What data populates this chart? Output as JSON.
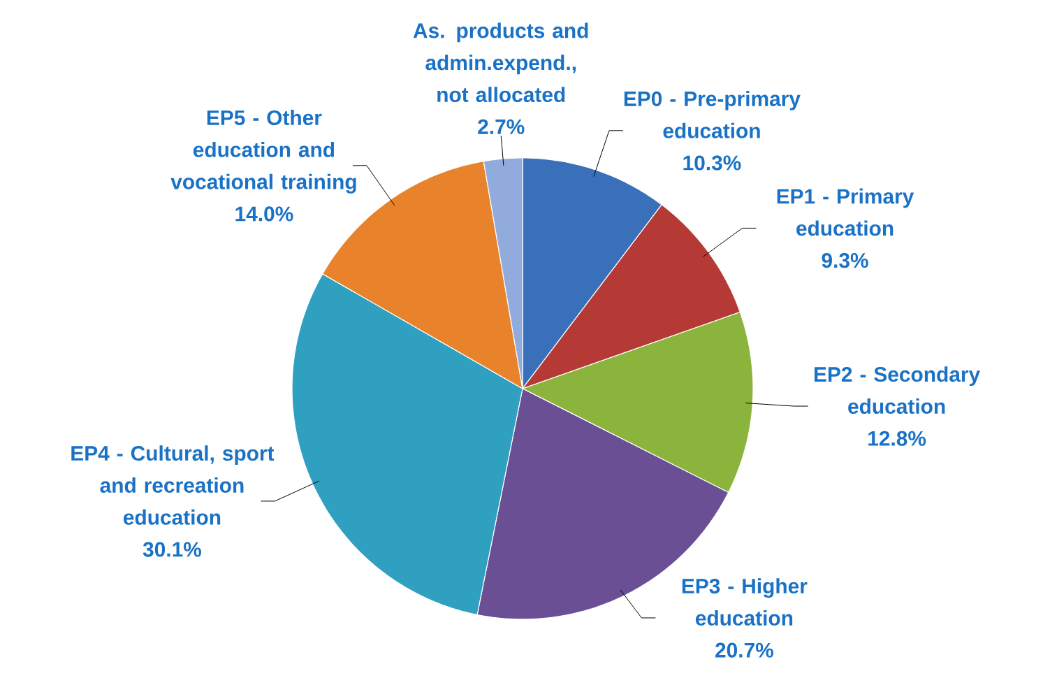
{
  "chart_data": {
    "type": "pie",
    "categories": [
      "EP0 - Pre-primary education",
      "EP1 - Primary education",
      "EP2 - Secondary education",
      "EP3 - Higher education",
      "EP4 - Cultural, sport and recreation education",
      "EP5 - Other education and vocational training",
      "As. products and admin.expend., not allocated"
    ],
    "values": [
      10.3,
      9.3,
      12.8,
      20.7,
      30.1,
      14.0,
      2.7
    ],
    "value_labels": [
      "10.3%",
      "9.3%",
      "12.8%",
      "20.7%",
      "30.1%",
      "14.0%",
      "2.7%"
    ],
    "colors": [
      "#3a70b9",
      "#b53a36",
      "#8bb43c",
      "#6a4f95",
      "#30a0c0",
      "#e8832c",
      "#91abdd"
    ]
  }
}
